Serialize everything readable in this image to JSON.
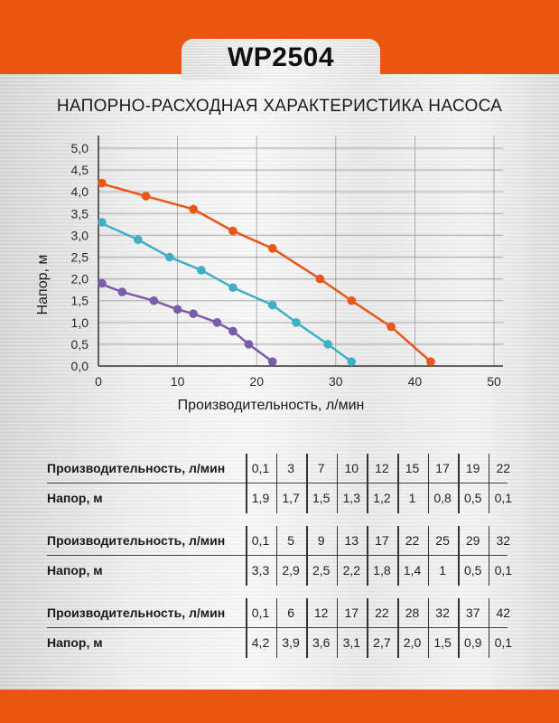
{
  "header": {
    "model": "WP2504",
    "subtitle": "НАПОРНО-РАСХОДНАЯ ХАРАКТЕРИСТИКА НАСОСА",
    "accent_color": "#E8560F"
  },
  "chart_data": {
    "type": "line",
    "title": "НАПОРНО-РАСХОДНАЯ ХАРАКТЕРИСТИКА НАСОСА",
    "xlabel": "Производительность, л/мин",
    "ylabel": "Напор, м",
    "xlim": [
      0,
      50
    ],
    "ylim": [
      0,
      5.0
    ],
    "x_ticks": [
      "0",
      "10",
      "20",
      "30",
      "40",
      "50"
    ],
    "y_ticks": [
      "0,0",
      "0,5",
      "1,0",
      "1,5",
      "2,0",
      "2,5",
      "3,0",
      "3,5",
      "4,0",
      "4,5",
      "5,0"
    ],
    "grid": true,
    "legend": null,
    "series": [
      {
        "name": "curve-1",
        "color": "#7B5BAA",
        "x": [
          0.1,
          3,
          7,
          10,
          12,
          15,
          17,
          19,
          22
        ],
        "y": [
          1.9,
          1.7,
          1.5,
          1.3,
          1.2,
          1.0,
          0.8,
          0.5,
          0.1
        ]
      },
      {
        "name": "curve-2",
        "color": "#3FAFC8",
        "x": [
          0.1,
          5,
          9,
          13,
          17,
          22,
          25,
          29,
          32
        ],
        "y": [
          3.3,
          2.9,
          2.5,
          2.2,
          1.8,
          1.4,
          1.0,
          0.5,
          0.1
        ]
      },
      {
        "name": "curve-3",
        "color": "#E8561A",
        "x": [
          0.1,
          6,
          12,
          17,
          22,
          28,
          32,
          37,
          42
        ],
        "y": [
          4.2,
          3.9,
          3.6,
          3.1,
          2.7,
          2.0,
          1.5,
          0.9,
          0.1
        ]
      }
    ]
  },
  "tables": [
    {
      "row1_label": "Производительность, л/мин",
      "row2_label": "Напор, м",
      "flow": [
        "0,1",
        "3",
        "7",
        "10",
        "12",
        "15",
        "17",
        "19",
        "22"
      ],
      "head": [
        "1,9",
        "1,7",
        "1,5",
        "1,3",
        "1,2",
        "1",
        "0,8",
        "0,5",
        "0,1"
      ]
    },
    {
      "row1_label": "Производительность, л/мин",
      "row2_label": "Напор, м",
      "flow": [
        "0,1",
        "5",
        "9",
        "13",
        "17",
        "22",
        "25",
        "29",
        "32"
      ],
      "head": [
        "3,3",
        "2,9",
        "2,5",
        "2,2",
        "1,8",
        "1,4",
        "1",
        "0,5",
        "0,1"
      ]
    },
    {
      "row1_label": "Производительность, л/мин",
      "row2_label": "Напор, м",
      "flow": [
        "0,1",
        "6",
        "12",
        "17",
        "22",
        "28",
        "32",
        "37",
        "42"
      ],
      "head": [
        "4,2",
        "3,9",
        "3,6",
        "3,1",
        "2,7",
        "2,0",
        "1,5",
        "0,9",
        "0,1"
      ]
    }
  ]
}
